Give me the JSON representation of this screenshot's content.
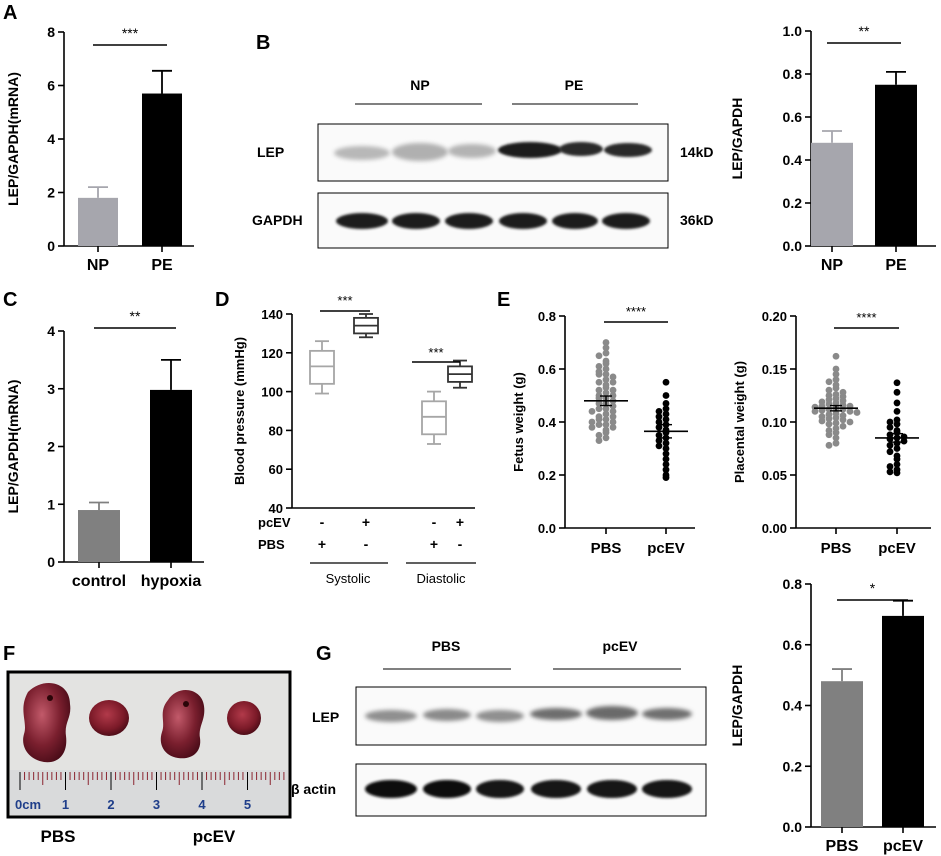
{
  "panels": {
    "A": {
      "letter": "A",
      "chart_data": {
        "type": "bar",
        "categories": [
          "NP",
          "PE"
        ],
        "values": [
          1.8,
          5.7
        ],
        "errors": [
          0.4,
          0.85
        ],
        "colors": [
          "#a6a6ad",
          "#000000"
        ],
        "ylabel": "LEP/GAPDH(mRNA)",
        "ylim": [
          0,
          8
        ],
        "yticks": [
          "0",
          "2",
          "4",
          "6",
          "8"
        ],
        "significance": "***"
      }
    },
    "B": {
      "letter": "B",
      "blot": {
        "groups": [
          "NP",
          "PE"
        ],
        "rows": [
          {
            "label": "LEP",
            "size": "14kD"
          },
          {
            "label": "GAPDH",
            "size": "36kD"
          }
        ]
      },
      "chart_data": {
        "type": "bar",
        "categories": [
          "NP",
          "PE"
        ],
        "values": [
          0.48,
          0.75
        ],
        "errors": [
          0.055,
          0.06
        ],
        "colors": [
          "#a6a6ad",
          "#000000"
        ],
        "ylabel": "LEP/GAPDH",
        "ylim": [
          0,
          1.0
        ],
        "yticks": [
          "0.0",
          "0.2",
          "0.4",
          "0.6",
          "0.8",
          "1.0"
        ],
        "significance": "**"
      }
    },
    "C": {
      "letter": "C",
      "chart_data": {
        "type": "bar",
        "categories": [
          "control",
          "hypoxia"
        ],
        "values": [
          0.9,
          2.98
        ],
        "errors": [
          0.13,
          0.52
        ],
        "colors": [
          "#808080",
          "#000000"
        ],
        "ylabel": "LEP/GAPDH(mRNA)",
        "ylim": [
          0,
          4
        ],
        "yticks": [
          "0",
          "1",
          "2",
          "3",
          "4"
        ],
        "significance": "**"
      }
    },
    "D": {
      "letter": "D",
      "chart_data": {
        "type": "box",
        "ylabel": "Blood pressure (mmHg)",
        "ylim": [
          40,
          140
        ],
        "yticks": [
          "40",
          "60",
          "80",
          "100",
          "120",
          "140"
        ],
        "boxes": [
          {
            "min": 99,
            "q1": 104,
            "median": 113,
            "q3": 121,
            "max": 126,
            "color": "#a6a6a6"
          },
          {
            "min": 128,
            "q1": 130,
            "median": 134,
            "q3": 138,
            "max": 140,
            "color": "#333333"
          },
          {
            "min": 73,
            "q1": 78,
            "median": 87,
            "q3": 95,
            "max": 100,
            "color": "#a6a6a6"
          },
          {
            "min": 102,
            "q1": 105,
            "median": 109,
            "q3": 113,
            "max": 116,
            "color": "#333333"
          }
        ],
        "treatment_rows": [
          {
            "label": "pcEV",
            "signs": [
              "-",
              "+",
              "-",
              "+"
            ]
          },
          {
            "label": "PBS",
            "signs": [
              "+",
              "-",
              "+",
              "-"
            ]
          }
        ],
        "groups": [
          "Systolic",
          "Diastolic"
        ],
        "significance": [
          "***",
          "***"
        ]
      }
    },
    "E": {
      "letter": "E",
      "charts": [
        {
          "type": "scatter",
          "ylabel": "Fetus weight (g)",
          "ylim": [
            0,
            0.8
          ],
          "yticks": [
            "0.0",
            "0.2",
            "0.4",
            "0.6",
            "0.8"
          ],
          "categories": [
            "PBS",
            "pcEV"
          ],
          "colors": [
            "#8a8a8a",
            "#000000"
          ],
          "significance": "****",
          "means": [
            0.48,
            0.365
          ],
          "sem": [
            0.018,
            0.025
          ],
          "series": [
            {
              "name": "PBS",
              "values": [
                0.7,
                0.68,
                0.66,
                0.65,
                0.63,
                0.62,
                0.61,
                0.6,
                0.59,
                0.58,
                0.58,
                0.57,
                0.56,
                0.55,
                0.55,
                0.54,
                0.53,
                0.52,
                0.52,
                0.51,
                0.5,
                0.5,
                0.49,
                0.49,
                0.48,
                0.47,
                0.47,
                0.46,
                0.45,
                0.45,
                0.44,
                0.44,
                0.43,
                0.42,
                0.42,
                0.41,
                0.41,
                0.4,
                0.4,
                0.39,
                0.39,
                0.38,
                0.38,
                0.37,
                0.36,
                0.35,
                0.34,
                0.33
              ]
            },
            {
              "name": "pcEV",
              "values": [
                0.55,
                0.5,
                0.47,
                0.45,
                0.44,
                0.43,
                0.42,
                0.41,
                0.4,
                0.39,
                0.38,
                0.37,
                0.36,
                0.35,
                0.34,
                0.33,
                0.32,
                0.31,
                0.3,
                0.28,
                0.26,
                0.24,
                0.22,
                0.2,
                0.19
              ]
            }
          ]
        },
        {
          "type": "scatter",
          "ylabel": "Placental weight (g)",
          "ylim": [
            0,
            0.2
          ],
          "yticks": [
            "0.00",
            "0.05",
            "0.10",
            "0.15",
            "0.20"
          ],
          "categories": [
            "PBS",
            "pcEV"
          ],
          "colors": [
            "#8a8a8a",
            "#000000"
          ],
          "significance": "****",
          "means": [
            0.113,
            0.085
          ],
          "sem": [
            0.0025,
            0.004
          ],
          "series": [
            {
              "name": "PBS",
              "values": [
                0.162,
                0.15,
                0.145,
                0.14,
                0.138,
                0.135,
                0.132,
                0.13,
                0.128,
                0.126,
                0.125,
                0.124,
                0.122,
                0.121,
                0.12,
                0.119,
                0.118,
                0.117,
                0.116,
                0.115,
                0.115,
                0.114,
                0.113,
                0.112,
                0.112,
                0.111,
                0.11,
                0.11,
                0.109,
                0.108,
                0.107,
                0.106,
                0.105,
                0.104,
                0.103,
                0.102,
                0.101,
                0.1,
                0.099,
                0.098,
                0.096,
                0.094,
                0.092,
                0.09,
                0.088,
                0.085,
                0.08,
                0.078
              ]
            },
            {
              "name": "pcEV",
              "values": [
                0.137,
                0.128,
                0.118,
                0.11,
                0.102,
                0.1,
                0.098,
                0.095,
                0.092,
                0.09,
                0.088,
                0.086,
                0.085,
                0.084,
                0.082,
                0.08,
                0.078,
                0.075,
                0.072,
                0.068,
                0.065,
                0.06,
                0.058,
                0.055,
                0.053,
                0.052
              ]
            }
          ]
        }
      ]
    },
    "F": {
      "letter": "F",
      "labels": [
        "PBS",
        "pcEV"
      ],
      "ruler_numbers": [
        "0cm",
        "1",
        "2",
        "3",
        "4",
        "5"
      ]
    },
    "G": {
      "letter": "G",
      "blot": {
        "groups": [
          "PBS",
          "pcEV"
        ],
        "rows": [
          {
            "label": "LEP"
          },
          {
            "label": "β actin"
          }
        ]
      },
      "chart_data": {
        "type": "bar",
        "categories": [
          "PBS",
          "pcEV"
        ],
        "values": [
          0.48,
          0.695
        ],
        "errors": [
          0.04,
          0.05
        ],
        "colors": [
          "#808080",
          "#000000"
        ],
        "ylabel": "LEP/GAPDH",
        "ylim": [
          0,
          0.8
        ],
        "yticks": [
          "0.0",
          "0.2",
          "0.4",
          "0.6",
          "0.8"
        ],
        "significance": "*"
      }
    }
  }
}
